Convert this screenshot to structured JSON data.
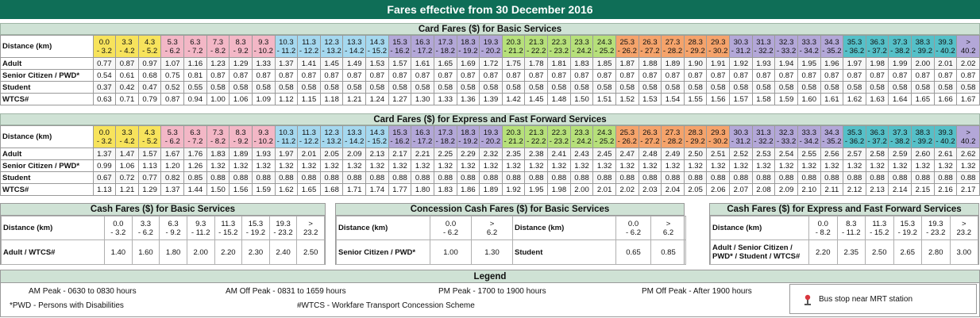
{
  "title": "Fares effective from 30 December 2016",
  "colors": {
    "title_bg": "#0f6e57",
    "section_bg": "#cfe2d5",
    "band_yellow": "#f7e35c",
    "band_pink": "#f3b7c6",
    "band_blue": "#a5d8ef",
    "band_green": "#b6e07a",
    "band_orange": "#f5a36b",
    "band_purple": "#b3a7d8",
    "band_teal": "#55c0c8"
  },
  "dist_label": "Distance (km)",
  "bands": [
    {
      "d": [
        "0.0",
        "- 3.2"
      ],
      "c": "band_yellow"
    },
    {
      "d": [
        "3.3",
        "- 4.2"
      ],
      "c": "band_yellow"
    },
    {
      "d": [
        "4.3",
        "- 5.2"
      ],
      "c": "band_yellow"
    },
    {
      "d": [
        "5.3",
        "- 6.2"
      ],
      "c": "band_pink"
    },
    {
      "d": [
        "6.3",
        "- 7.2"
      ],
      "c": "band_pink"
    },
    {
      "d": [
        "7.3",
        "- 8.2"
      ],
      "c": "band_pink"
    },
    {
      "d": [
        "8.3",
        "- 9.2"
      ],
      "c": "band_pink"
    },
    {
      "d": [
        "9.3",
        "- 10.2"
      ],
      "c": "band_pink"
    },
    {
      "d": [
        "10.3",
        "- 11.2"
      ],
      "c": "band_blue"
    },
    {
      "d": [
        "11.3",
        "- 12.2"
      ],
      "c": "band_blue"
    },
    {
      "d": [
        "12.3",
        "- 13.2"
      ],
      "c": "band_blue"
    },
    {
      "d": [
        "13.3",
        "- 14.2"
      ],
      "c": "band_blue"
    },
    {
      "d": [
        "14.3",
        "- 15.2"
      ],
      "c": "band_blue"
    },
    {
      "d": [
        "15.3",
        "- 16.2"
      ],
      "c": "band_purple"
    },
    {
      "d": [
        "16.3",
        "- 17.2"
      ],
      "c": "band_purple"
    },
    {
      "d": [
        "17.3",
        "- 18.2"
      ],
      "c": "band_purple"
    },
    {
      "d": [
        "18.3",
        "- 19.2"
      ],
      "c": "band_purple"
    },
    {
      "d": [
        "19.3",
        "- 20.2"
      ],
      "c": "band_purple"
    },
    {
      "d": [
        "20.3",
        "- 21.2"
      ],
      "c": "band_green"
    },
    {
      "d": [
        "21.3",
        "- 22.2"
      ],
      "c": "band_green"
    },
    {
      "d": [
        "22.3",
        "- 23.2"
      ],
      "c": "band_green"
    },
    {
      "d": [
        "23.3",
        "- 24.2"
      ],
      "c": "band_green"
    },
    {
      "d": [
        "24.3",
        "- 25.2"
      ],
      "c": "band_green"
    },
    {
      "d": [
        "25.3",
        "- 26.2"
      ],
      "c": "band_orange"
    },
    {
      "d": [
        "26.3",
        "- 27.2"
      ],
      "c": "band_orange"
    },
    {
      "d": [
        "27.3",
        "- 28.2"
      ],
      "c": "band_orange"
    },
    {
      "d": [
        "28.3",
        "- 29.2"
      ],
      "c": "band_orange"
    },
    {
      "d": [
        "29.3",
        "- 30.2"
      ],
      "c": "band_orange"
    },
    {
      "d": [
        "30.3",
        "- 31.2"
      ],
      "c": "band_purple"
    },
    {
      "d": [
        "31.3",
        "- 32.2"
      ],
      "c": "band_purple"
    },
    {
      "d": [
        "32.3",
        "- 33.2"
      ],
      "c": "band_purple"
    },
    {
      "d": [
        "33.3",
        "- 34.2"
      ],
      "c": "band_purple"
    },
    {
      "d": [
        "34.3",
        "- 35.2"
      ],
      "c": "band_purple"
    },
    {
      "d": [
        "35.3",
        "- 36.2"
      ],
      "c": "band_teal"
    },
    {
      "d": [
        "36.3",
        "- 37.2"
      ],
      "c": "band_teal"
    },
    {
      "d": [
        "37.3",
        "- 38.2"
      ],
      "c": "band_teal"
    },
    {
      "d": [
        "38.3",
        "- 39.2"
      ],
      "c": "band_teal"
    },
    {
      "d": [
        "39.3",
        "- 40.2"
      ],
      "c": "band_teal"
    },
    {
      "d": [
        ">",
        "40.2"
      ],
      "c": "band_purple"
    }
  ],
  "card_basic": {
    "heading": "Card Fares ($) for Basic Services",
    "rows": [
      {
        "label": "Adult",
        "values": [
          "0.77",
          "0.87",
          "0.97",
          "1.07",
          "1.16",
          "1.23",
          "1.29",
          "1.33",
          "1.37",
          "1.41",
          "1.45",
          "1.49",
          "1.53",
          "1.57",
          "1.61",
          "1.65",
          "1.69",
          "1.72",
          "1.75",
          "1.78",
          "1.81",
          "1.83",
          "1.85",
          "1.87",
          "1.88",
          "1.89",
          "1.90",
          "1.91",
          "1.92",
          "1.93",
          "1.94",
          "1.95",
          "1.96",
          "1.97",
          "1.98",
          "1.99",
          "2.00",
          "2.01",
          "2.02"
        ]
      },
      {
        "label": "Senior Citizen / PWD*",
        "values": [
          "0.54",
          "0.61",
          "0.68",
          "0.75",
          "0.81",
          "0.87",
          "0.87",
          "0.87",
          "0.87",
          "0.87",
          "0.87",
          "0.87",
          "0.87",
          "0.87",
          "0.87",
          "0.87",
          "0.87",
          "0.87",
          "0.87",
          "0.87",
          "0.87",
          "0.87",
          "0.87",
          "0.87",
          "0.87",
          "0.87",
          "0.87",
          "0.87",
          "0.87",
          "0.87",
          "0.87",
          "0.87",
          "0.87",
          "0.87",
          "0.87",
          "0.87",
          "0.87",
          "0.87",
          "0.87"
        ]
      },
      {
        "label": "Student",
        "values": [
          "0.37",
          "0.42",
          "0.47",
          "0.52",
          "0.55",
          "0.58",
          "0.58",
          "0.58",
          "0.58",
          "0.58",
          "0.58",
          "0.58",
          "0.58",
          "0.58",
          "0.58",
          "0.58",
          "0.58",
          "0.58",
          "0.58",
          "0.58",
          "0.58",
          "0.58",
          "0.58",
          "0.58",
          "0.58",
          "0.58",
          "0.58",
          "0.58",
          "0.58",
          "0.58",
          "0.58",
          "0.58",
          "0.58",
          "0.58",
          "0.58",
          "0.58",
          "0.58",
          "0.58",
          "0.58"
        ]
      },
      {
        "label": "WTCS#",
        "values": [
          "0.63",
          "0.71",
          "0.79",
          "0.87",
          "0.94",
          "1.00",
          "1.06",
          "1.09",
          "1.12",
          "1.15",
          "1.18",
          "1.21",
          "1.24",
          "1.27",
          "1.30",
          "1.33",
          "1.36",
          "1.39",
          "1.42",
          "1.45",
          "1.48",
          "1.50",
          "1.51",
          "1.52",
          "1.53",
          "1.54",
          "1.55",
          "1.56",
          "1.57",
          "1.58",
          "1.59",
          "1.60",
          "1.61",
          "1.62",
          "1.63",
          "1.64",
          "1.65",
          "1.66",
          "1.67"
        ]
      }
    ]
  },
  "card_express": {
    "heading": "Card Fares ($) for Express and Fast Forward Services",
    "rows": [
      {
        "label": "Adult",
        "values": [
          "1.37",
          "1.47",
          "1.57",
          "1.67",
          "1.76",
          "1.83",
          "1.89",
          "1.93",
          "1.97",
          "2.01",
          "2.05",
          "2.09",
          "2.13",
          "2.17",
          "2.21",
          "2.25",
          "2.29",
          "2.32",
          "2.35",
          "2.38",
          "2.41",
          "2.43",
          "2.45",
          "2.47",
          "2.48",
          "2.49",
          "2.50",
          "2.51",
          "2.52",
          "2.53",
          "2.54",
          "2.55",
          "2.56",
          "2.57",
          "2.58",
          "2.59",
          "2.60",
          "2.61",
          "2.62"
        ]
      },
      {
        "label": "Senior Citizen / PWD*",
        "values": [
          "0.99",
          "1.06",
          "1.13",
          "1.20",
          "1.26",
          "1.32",
          "1.32",
          "1.32",
          "1.32",
          "1.32",
          "1.32",
          "1.32",
          "1.32",
          "1.32",
          "1.32",
          "1.32",
          "1.32",
          "1.32",
          "1.32",
          "1.32",
          "1.32",
          "1.32",
          "1.32",
          "1.32",
          "1.32",
          "1.32",
          "1.32",
          "1.32",
          "1.32",
          "1.32",
          "1.32",
          "1.32",
          "1.32",
          "1.32",
          "1.32",
          "1.32",
          "1.32",
          "1.32",
          "1.32"
        ]
      },
      {
        "label": "Student",
        "values": [
          "0.67",
          "0.72",
          "0.77",
          "0.82",
          "0.85",
          "0.88",
          "0.88",
          "0.88",
          "0.88",
          "0.88",
          "0.88",
          "0.88",
          "0.88",
          "0.88",
          "0.88",
          "0.88",
          "0.88",
          "0.88",
          "0.88",
          "0.88",
          "0.88",
          "0.88",
          "0.88",
          "0.88",
          "0.88",
          "0.88",
          "0.88",
          "0.88",
          "0.88",
          "0.88",
          "0.88",
          "0.88",
          "0.88",
          "0.88",
          "0.88",
          "0.88",
          "0.88",
          "0.88",
          "0.88"
        ]
      },
      {
        "label": "WTCS#",
        "values": [
          "1.13",
          "1.21",
          "1.29",
          "1.37",
          "1.44",
          "1.50",
          "1.56",
          "1.59",
          "1.62",
          "1.65",
          "1.68",
          "1.71",
          "1.74",
          "1.77",
          "1.80",
          "1.83",
          "1.86",
          "1.89",
          "1.92",
          "1.95",
          "1.98",
          "2.00",
          "2.01",
          "2.02",
          "2.03",
          "2.04",
          "2.05",
          "2.06",
          "2.07",
          "2.08",
          "2.09",
          "2.10",
          "2.11",
          "2.12",
          "2.13",
          "2.14",
          "2.15",
          "2.16",
          "2.17"
        ]
      }
    ]
  },
  "cash_basic": {
    "heading": "Cash Fares ($) for Basic Services",
    "dist_label": "Distance (km)",
    "dists": [
      [
        "0.0",
        "- 3.2"
      ],
      [
        "3.3",
        "- 6.2"
      ],
      [
        "6.3",
        "- 9.2"
      ],
      [
        "9.3",
        "- 11.2"
      ],
      [
        "11.3",
        "- 15.2"
      ],
      [
        "15.3",
        "- 19.2"
      ],
      [
        "19.3",
        "- 23.2"
      ],
      [
        ">",
        "23.2"
      ]
    ],
    "row_label": "Adult / WTCS#",
    "values": [
      "1.40",
      "1.60",
      "1.80",
      "2.00",
      "2.20",
      "2.30",
      "2.40",
      "2.50"
    ]
  },
  "concession_cash": {
    "heading": "Concession Cash Fares ($) for Basic Services",
    "dist_label": "Distance (km)",
    "dists": [
      [
        "0.0",
        "- 6.2"
      ],
      [
        ">",
        "6.2"
      ]
    ],
    "senior_label": "Senior Citizen / PWD*",
    "senior_values": [
      "1.00",
      "1.30"
    ],
    "student_dist_label": "Distance (km)",
    "student_dists": [
      [
        "0.0",
        "- 6.2"
      ],
      [
        ">",
        "6.2"
      ]
    ],
    "student_label": "Student",
    "student_values": [
      "0.65",
      "0.85"
    ]
  },
  "cash_express": {
    "heading": "Cash Fares ($) for Express and Fast Forward Services",
    "dist_label": "Distance (km)",
    "dists": [
      [
        "0.0",
        "- 8.2"
      ],
      [
        "8.3",
        "- 11.2"
      ],
      [
        "11.3",
        "- 15.2"
      ],
      [
        "15.3",
        "- 19.2"
      ],
      [
        "19.3",
        "- 23.2"
      ],
      [
        ">",
        "23.2"
      ]
    ],
    "row_label": "Adult / Senior Citizen / PWD* / Student / WTCS#",
    "values": [
      "2.20",
      "2.35",
      "2.50",
      "2.65",
      "2.80",
      "3.00"
    ]
  },
  "legend": {
    "heading": "Legend",
    "am_peak": "AM Peak  -  0630 to 0830 hours",
    "am_off_peak": "AM Off Peak  -  0831 to 1659 hours",
    "pm_peak": "PM Peak  -  1700 to 1900 hours",
    "pm_off_peak": "PM Off Peak  -  After 1900 hours",
    "pwd_note": "*PWD - Persons with Disabilities",
    "wtcs_note": "#WTCS - Workfare Transport Concession Scheme",
    "mrt_label": "Bus stop near MRT station"
  }
}
